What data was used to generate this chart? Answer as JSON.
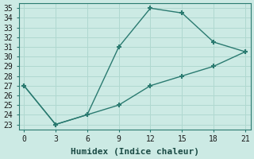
{
  "line1_x": [
    0,
    3,
    6,
    9,
    12,
    15,
    18,
    21
  ],
  "line1_y": [
    27,
    23,
    24,
    31,
    35,
    34.5,
    31.5,
    30.5
  ],
  "line2_x": [
    0,
    3,
    6,
    9,
    12,
    15,
    18,
    21
  ],
  "line2_y": [
    27,
    23,
    24,
    25,
    27,
    28,
    29,
    30.5
  ],
  "line_color": "#2a7a70",
  "bg_color": "#cceae4",
  "grid_color": "#b0d8d0",
  "xlabel": "Humidex (Indice chaleur)",
  "xlim": [
    -0.5,
    21.5
  ],
  "ylim": [
    22.5,
    35.5
  ],
  "xticks": [
    0,
    3,
    6,
    9,
    12,
    15,
    18,
    21
  ],
  "yticks": [
    23,
    24,
    25,
    26,
    27,
    28,
    29,
    30,
    31,
    32,
    33,
    34,
    35
  ],
  "marker": "+",
  "marker_size": 5,
  "marker_linewidth": 1.5,
  "line_width": 1.0,
  "tick_fontsize": 7,
  "label_fontsize": 8
}
